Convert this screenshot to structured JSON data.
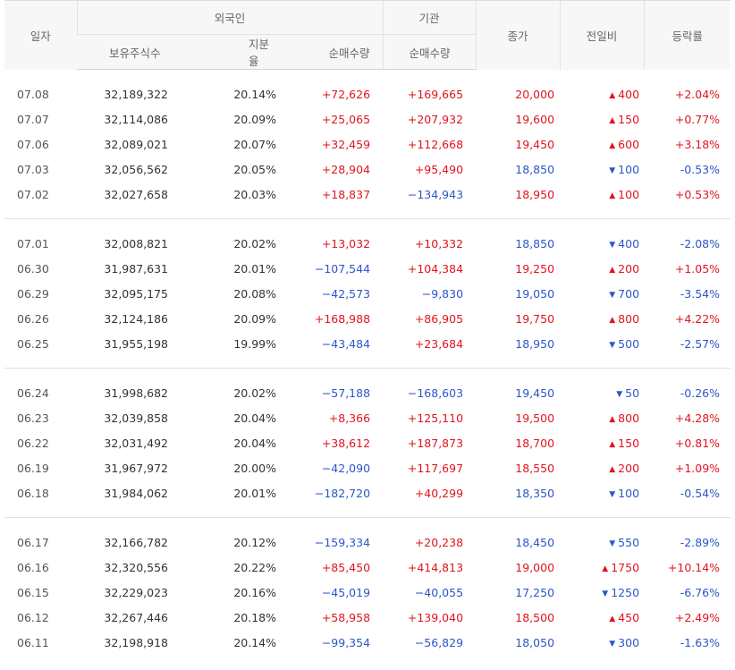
{
  "header": {
    "date": "일자",
    "foreign": "외국인",
    "institution": "기관",
    "close": "종가",
    "change": "전일비",
    "rate": "등락률",
    "holding": "보유주식수",
    "ratio": "지분율",
    "foreign_net": "순매수량",
    "inst_net": "순매수량"
  },
  "colors": {
    "up": "#e1141e",
    "down": "#2a57c8"
  },
  "rows": [
    {
      "date": "07.08",
      "holding": "32,189,322",
      "ratio": "20.14%",
      "foreign_net": "+72,626",
      "inst_net": "+169,665",
      "close": "20,000",
      "change": "400",
      "dir": "up",
      "rate": "+2.04%"
    },
    {
      "date": "07.07",
      "holding": "32,114,086",
      "ratio": "20.09%",
      "foreign_net": "+25,065",
      "inst_net": "+207,932",
      "close": "19,600",
      "change": "150",
      "dir": "up",
      "rate": "+0.77%"
    },
    {
      "date": "07.06",
      "holding": "32,089,021",
      "ratio": "20.07%",
      "foreign_net": "+32,459",
      "inst_net": "+112,668",
      "close": "19,450",
      "change": "600",
      "dir": "up",
      "rate": "+3.18%"
    },
    {
      "date": "07.03",
      "holding": "32,056,562",
      "ratio": "20.05%",
      "foreign_net": "+28,904",
      "inst_net": "+95,490",
      "close": "18,850",
      "change": "100",
      "dir": "down",
      "rate": "-0.53%"
    },
    {
      "date": "07.02",
      "holding": "32,027,658",
      "ratio": "20.03%",
      "foreign_net": "+18,837",
      "inst_net": "−134,943",
      "close": "18,950",
      "change": "100",
      "dir": "up",
      "rate": "+0.53%"
    },
    {
      "date": "07.01",
      "holding": "32,008,821",
      "ratio": "20.02%",
      "foreign_net": "+13,032",
      "inst_net": "+10,332",
      "close": "18,850",
      "change": "400",
      "dir": "down",
      "rate": "-2.08%"
    },
    {
      "date": "06.30",
      "holding": "31,987,631",
      "ratio": "20.01%",
      "foreign_net": "−107,544",
      "inst_net": "+104,384",
      "close": "19,250",
      "change": "200",
      "dir": "up",
      "rate": "+1.05%"
    },
    {
      "date": "06.29",
      "holding": "32,095,175",
      "ratio": "20.08%",
      "foreign_net": "−42,573",
      "inst_net": "−9,830",
      "close": "19,050",
      "change": "700",
      "dir": "down",
      "rate": "-3.54%"
    },
    {
      "date": "06.26",
      "holding": "32,124,186",
      "ratio": "20.09%",
      "foreign_net": "+168,988",
      "inst_net": "+86,905",
      "close": "19,750",
      "change": "800",
      "dir": "up",
      "rate": "+4.22%"
    },
    {
      "date": "06.25",
      "holding": "31,955,198",
      "ratio": "19.99%",
      "foreign_net": "−43,484",
      "inst_net": "+23,684",
      "close": "18,950",
      "change": "500",
      "dir": "down",
      "rate": "-2.57%"
    },
    {
      "date": "06.24",
      "holding": "31,998,682",
      "ratio": "20.02%",
      "foreign_net": "−57,188",
      "inst_net": "−168,603",
      "close": "19,450",
      "change": "50",
      "dir": "down",
      "rate": "-0.26%"
    },
    {
      "date": "06.23",
      "holding": "32,039,858",
      "ratio": "20.04%",
      "foreign_net": "+8,366",
      "inst_net": "+125,110",
      "close": "19,500",
      "change": "800",
      "dir": "up",
      "rate": "+4.28%"
    },
    {
      "date": "06.22",
      "holding": "32,031,492",
      "ratio": "20.04%",
      "foreign_net": "+38,612",
      "inst_net": "+187,873",
      "close": "18,700",
      "change": "150",
      "dir": "up",
      "rate": "+0.81%"
    },
    {
      "date": "06.19",
      "holding": "31,967,972",
      "ratio": "20.00%",
      "foreign_net": "−42,090",
      "inst_net": "+117,697",
      "close": "18,550",
      "change": "200",
      "dir": "up",
      "rate": "+1.09%"
    },
    {
      "date": "06.18",
      "holding": "31,984,062",
      "ratio": "20.01%",
      "foreign_net": "−182,720",
      "inst_net": "+40,299",
      "close": "18,350",
      "change": "100",
      "dir": "down",
      "rate": "-0.54%"
    },
    {
      "date": "06.17",
      "holding": "32,166,782",
      "ratio": "20.12%",
      "foreign_net": "−159,334",
      "inst_net": "+20,238",
      "close": "18,450",
      "change": "550",
      "dir": "down",
      "rate": "-2.89%"
    },
    {
      "date": "06.16",
      "holding": "32,320,556",
      "ratio": "20.22%",
      "foreign_net": "+85,450",
      "inst_net": "+414,813",
      "close": "19,000",
      "change": "1750",
      "dir": "up",
      "rate": "+10.14%"
    },
    {
      "date": "06.15",
      "holding": "32,229,023",
      "ratio": "20.16%",
      "foreign_net": "−45,019",
      "inst_net": "−40,055",
      "close": "17,250",
      "change": "1250",
      "dir": "down",
      "rate": "-6.76%"
    },
    {
      "date": "06.12",
      "holding": "32,267,446",
      "ratio": "20.18%",
      "foreign_net": "+58,958",
      "inst_net": "+139,040",
      "close": "18,500",
      "change": "450",
      "dir": "up",
      "rate": "+2.49%"
    },
    {
      "date": "06.11",
      "holding": "32,198,918",
      "ratio": "20.14%",
      "foreign_net": "−99,354",
      "inst_net": "−56,829",
      "close": "18,050",
      "change": "300",
      "dir": "down",
      "rate": "-1.63%"
    }
  ]
}
